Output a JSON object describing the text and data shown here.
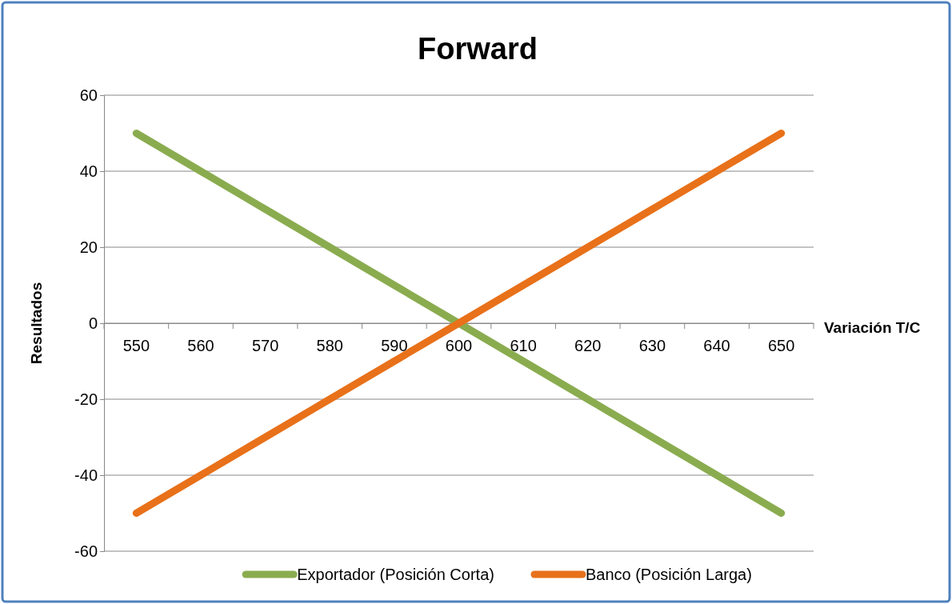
{
  "chart_data": {
    "type": "line",
    "title": "Forward",
    "xlabel": "Variación T/C",
    "ylabel": "Resultados",
    "categories": [
      "550",
      "560",
      "570",
      "580",
      "590",
      "600",
      "610",
      "620",
      "630",
      "640",
      "650"
    ],
    "series": [
      {
        "name": "Exportador (Posición Corta)",
        "color": "#8aac4f",
        "values": [
          50,
          40,
          30,
          20,
          10,
          0,
          -10,
          -20,
          -30,
          -40,
          -50
        ]
      },
      {
        "name": "Banco (Posición Larga)",
        "color": "#e8711a",
        "values": [
          -50,
          -40,
          -30,
          -20,
          -10,
          0,
          10,
          20,
          30,
          40,
          50
        ]
      }
    ],
    "ylim": [
      -60,
      60
    ],
    "yticks": [
      -60,
      -40,
      -20,
      0,
      20,
      40,
      60
    ],
    "grid": "y",
    "legend": "bottom",
    "marker": "none",
    "line_style": "solid"
  }
}
